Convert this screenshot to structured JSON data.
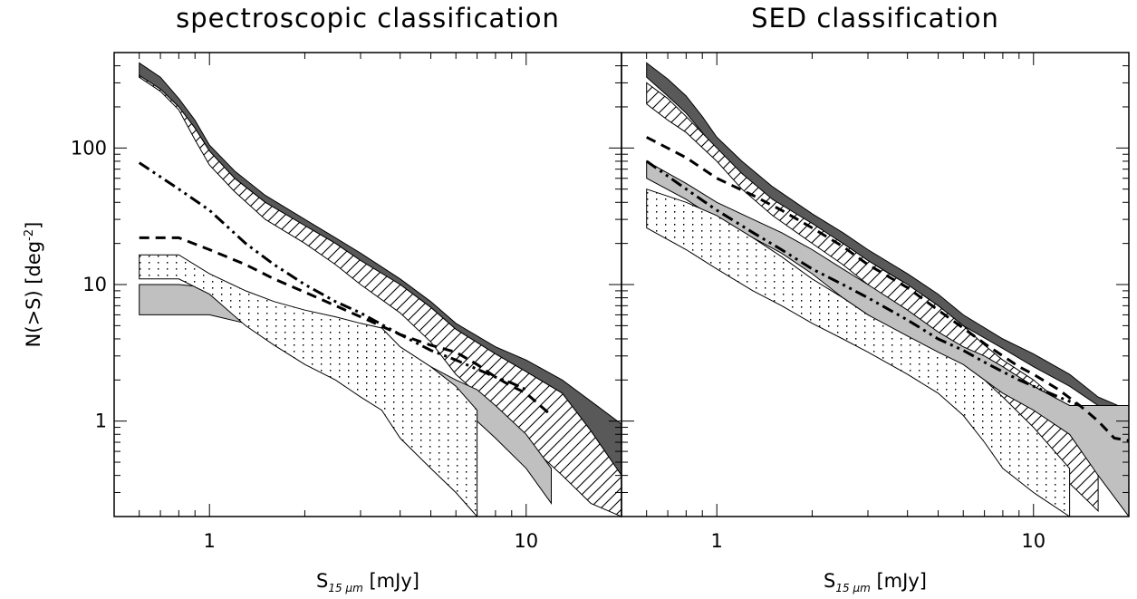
{
  "ylabel_main": "N(>S) [deg",
  "ylabel_sup": "-2",
  "ylabel_close": "]",
  "xlabel_main": "S",
  "xlabel_sub": "15 μm",
  "xlabel_unit": " [mJy]",
  "colors": {
    "dark": "#595959",
    "gray": "#c0c0c0",
    "line": "#000000"
  },
  "chart_data": [
    {
      "type": "area",
      "title": "spectroscopic classification",
      "xscale": "log",
      "yscale": "log",
      "xlim": [
        0.5,
        20
      ],
      "ylim": [
        0.2,
        500
      ],
      "xticks": [
        {
          "v": 1,
          "label": "1"
        },
        {
          "v": 10,
          "label": "10"
        }
      ],
      "yticks": [
        {
          "v": 1,
          "label": "1"
        },
        {
          "v": 10,
          "label": "10"
        },
        {
          "v": 100,
          "label": "100"
        }
      ],
      "bands": [
        {
          "style": "dark",
          "x": [
            0.6,
            0.7,
            0.8,
            0.9,
            1.0,
            1.2,
            1.5,
            2,
            2.5,
            3,
            4,
            5,
            6,
            8,
            10,
            13,
            16,
            20
          ],
          "upper": [
            420,
            330,
            230,
            160,
            105,
            68,
            45,
            30,
            22,
            17,
            11,
            7.5,
            5.2,
            3.5,
            2.8,
            2.0,
            1.4,
            0.95
          ],
          "lower": [
            330,
            270,
            200,
            140,
            95,
            60,
            40,
            27,
            20,
            15,
            10,
            6.8,
            4.7,
            3.1,
            2.3,
            1.6,
            0.85,
            0.4
          ]
        },
        {
          "style": "hatch",
          "x": [
            0.6,
            0.7,
            0.8,
            0.9,
            1.0,
            1.2,
            1.5,
            2,
            2.5,
            3,
            4,
            5,
            6,
            8,
            10,
            13,
            16,
            20
          ],
          "upper": [
            340,
            270,
            200,
            140,
            95,
            60,
            40,
            27,
            20,
            15,
            10,
            6.8,
            4.7,
            3.1,
            2.3,
            1.6,
            0.85,
            0.4
          ],
          "lower": [
            330,
            260,
            190,
            115,
            75,
            48,
            30,
            20,
            14,
            10,
            6.2,
            3.8,
            2.2,
            1.2,
            0.7,
            0.4,
            0.25,
            0.2
          ]
        },
        {
          "style": "gray",
          "x": [
            0.6,
            0.8,
            1.0,
            1.3,
            1.6,
            2,
            2.5,
            3,
            3.5,
            4,
            5,
            6,
            7,
            8,
            10,
            12
          ],
          "upper": [
            10,
            10,
            9.5,
            7.5,
            6.0,
            5.2,
            4.6,
            4.0,
            3.5,
            3.0,
            2.5,
            2.0,
            1.7,
            1.3,
            0.8,
            0.45
          ],
          "lower": [
            6,
            6,
            6,
            5.2,
            4.3,
            3.5,
            3.0,
            2.5,
            2.2,
            1.9,
            1.6,
            1.3,
            1.0,
            0.75,
            0.45,
            0.25
          ]
        },
        {
          "style": "dots",
          "x": [
            0.6,
            0.7,
            0.8,
            1.0,
            1.3,
            1.6,
            2,
            2.5,
            3,
            3.5,
            4,
            5,
            6,
            7
          ],
          "upper": [
            16.5,
            16.5,
            16.5,
            12,
            9,
            7.5,
            6.5,
            5.8,
            5.2,
            4.8,
            3.5,
            2.5,
            1.8,
            1.2
          ],
          "lower": [
            11,
            11,
            11,
            8.5,
            5,
            3.6,
            2.6,
            2.0,
            1.5,
            1.2,
            0.75,
            0.45,
            0.3,
            0.2
          ]
        }
      ],
      "lines": [
        {
          "style": "dashdotdot",
          "x": [
            0.6,
            0.8,
            1.0,
            1.3,
            1.6,
            2,
            2.5,
            3,
            4,
            5,
            6,
            7,
            8,
            9,
            10
          ],
          "y": [
            78,
            50,
            35,
            20,
            14,
            10,
            7.5,
            6.2,
            4.3,
            3.3,
            2.8,
            2.4,
            2.1,
            1.9,
            1.7
          ]
        },
        {
          "style": "dashed",
          "x": [
            0.6,
            0.8,
            1.0,
            1.3,
            1.6,
            2,
            2.5,
            3,
            4,
            5,
            6,
            7,
            8,
            9,
            10,
            12
          ],
          "y": [
            22,
            22,
            18,
            14,
            11,
            8.8,
            7.0,
            5.8,
            4.3,
            3.6,
            3.2,
            2.6,
            2.1,
            1.8,
            1.6,
            1.1
          ]
        }
      ]
    },
    {
      "type": "area",
      "title": "SED classification",
      "xscale": "log",
      "yscale": "log",
      "xlim": [
        0.5,
        20
      ],
      "ylim": [
        0.2,
        500
      ],
      "xticks": [
        {
          "v": 1,
          "label": "1"
        },
        {
          "v": 10,
          "label": "10"
        }
      ],
      "yticks": [
        {
          "v": 1
        },
        {
          "v": 10
        },
        {
          "v": 100
        }
      ],
      "bands": [
        {
          "style": "dark",
          "x": [
            0.6,
            0.7,
            0.8,
            0.9,
            1.0,
            1.2,
            1.5,
            2,
            2.5,
            3,
            4,
            5,
            6,
            8,
            10,
            13,
            16,
            20
          ],
          "upper": [
            420,
            320,
            240,
            170,
            120,
            80,
            52,
            33,
            24,
            18,
            12,
            8.5,
            6.0,
            4.0,
            3.1,
            2.2,
            1.5,
            1.2
          ],
          "lower": [
            330,
            240,
            180,
            130,
            95,
            60,
            40,
            27,
            20,
            15,
            10,
            7,
            5.0,
            3.4,
            2.5,
            1.8,
            1.3,
            1.2
          ]
        },
        {
          "style": "hatch",
          "x": [
            0.6,
            0.7,
            0.8,
            1.0,
            1.2,
            1.5,
            2,
            2.5,
            3,
            3.5,
            4,
            5,
            6,
            7,
            8,
            10,
            13,
            16
          ],
          "upper": [
            300,
            230,
            170,
            100,
            65,
            42,
            28,
            20,
            15,
            12,
            10,
            7,
            5.0,
            3.6,
            2.8,
            2.0,
            1.2,
            0.6
          ],
          "lower": [
            210,
            160,
            130,
            80,
            50,
            32,
            20,
            14,
            10,
            7.5,
            5.8,
            4.0,
            2.6,
            1.6,
            1.0,
            0.6,
            0.35,
            0.22
          ]
        },
        {
          "style": "gray",
          "x": [
            0.6,
            0.8,
            1.0,
            1.3,
            1.6,
            2,
            2.5,
            3,
            4,
            5,
            6,
            7,
            8,
            10,
            13,
            16,
            20
          ],
          "upper": [
            80,
            55,
            40,
            30,
            24,
            18,
            13,
            10,
            6.5,
            4.5,
            3.5,
            3.0,
            2.5,
            1.8,
            1.3,
            1.3,
            1.3
          ],
          "lower": [
            60,
            42,
            30,
            22,
            17,
            12,
            8,
            6.0,
            4.0,
            3.0,
            2.4,
            2.0,
            1.6,
            1.2,
            0.8,
            0.4,
            0.2
          ]
        },
        {
          "style": "dots",
          "x": [
            0.6,
            0.8,
            1.0,
            1.3,
            1.6,
            2,
            2.5,
            3,
            4,
            5,
            6,
            7,
            8,
            10,
            13
          ],
          "upper": [
            50,
            40,
            32,
            22,
            16,
            11,
            8,
            6,
            4.2,
            3.2,
            2.6,
            2.0,
            1.5,
            0.9,
            0.45
          ],
          "lower": [
            26,
            18,
            13,
            9,
            7,
            5.2,
            4,
            3.2,
            2.2,
            1.6,
            1.1,
            0.7,
            0.45,
            0.3,
            0.2
          ]
        }
      ],
      "lines": [
        {
          "style": "dashdotdot",
          "x": [
            0.6,
            0.8,
            1.0,
            1.3,
            1.6,
            2,
            2.5,
            3,
            4,
            5,
            6,
            7,
            8,
            9,
            10,
            12,
            14
          ],
          "y": [
            80,
            50,
            35,
            24,
            18,
            13,
            10,
            8,
            5.5,
            4.0,
            3.3,
            2.7,
            2.3,
            2.0,
            1.8,
            1.5,
            1.3
          ]
        },
        {
          "style": "dashed",
          "x": [
            0.6,
            0.8,
            1.0,
            1.3,
            1.6,
            2,
            2.5,
            3,
            4,
            5,
            6,
            7,
            8,
            9,
            10,
            12,
            14,
            16,
            18,
            20
          ],
          "y": [
            120,
            85,
            60,
            45,
            35,
            26,
            19,
            14,
            9.5,
            6.5,
            4.8,
            3.7,
            3.0,
            2.5,
            2.2,
            1.7,
            1.3,
            1.0,
            0.75,
            0.72
          ]
        }
      ]
    }
  ]
}
